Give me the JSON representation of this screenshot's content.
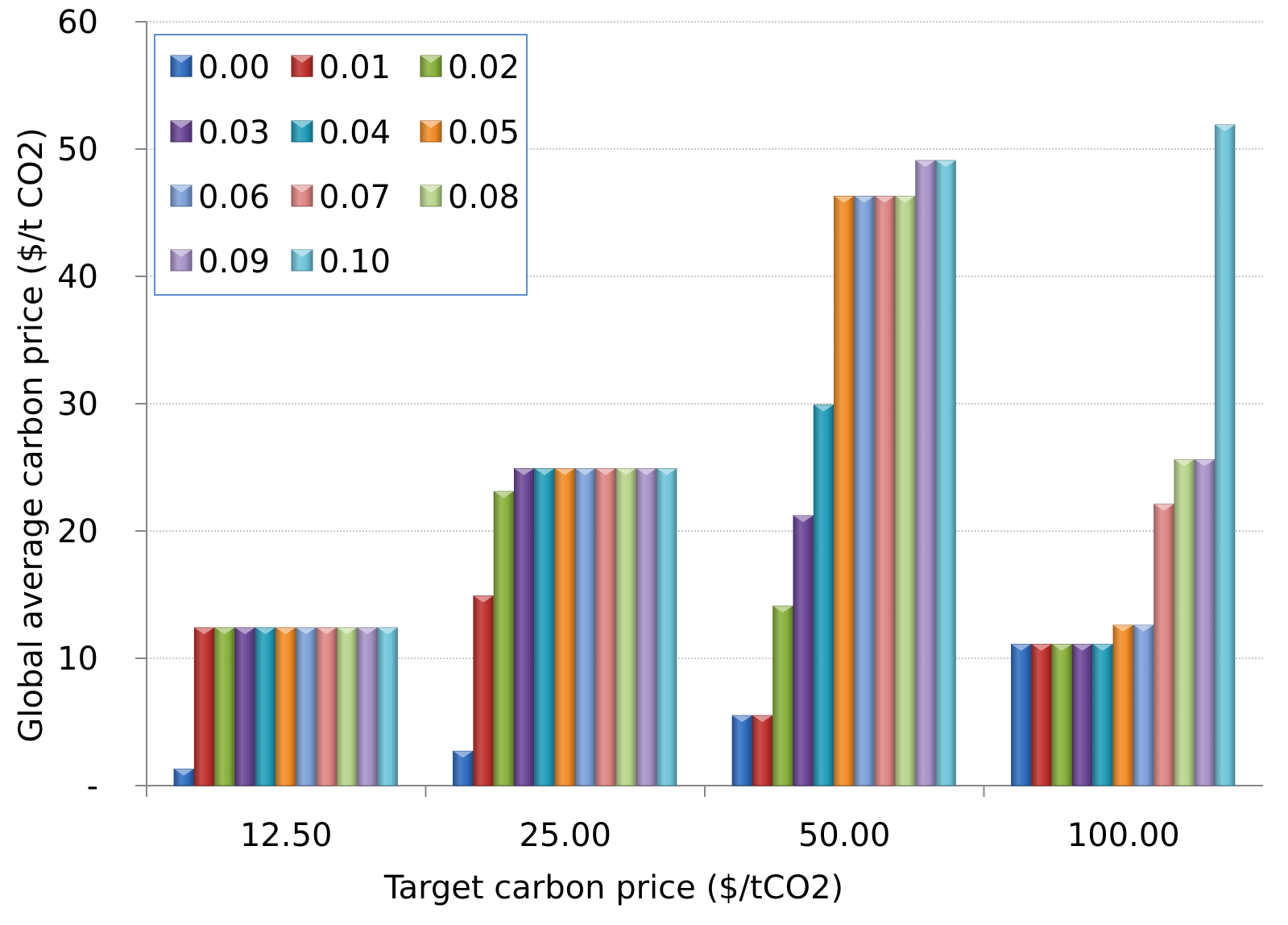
{
  "chart_data": {
    "type": "bar",
    "title": "",
    "xlabel": "Target carbon price ($/tCO2)",
    "ylabel": "Global average carbon price ($/t CO2)",
    "ylim": [
      0,
      60
    ],
    "yticks": [
      {
        "value": 0,
        "label": "-"
      },
      {
        "value": 10,
        "label": "10"
      },
      {
        "value": 20,
        "label": "20"
      },
      {
        "value": 30,
        "label": "30"
      },
      {
        "value": 40,
        "label": "40"
      },
      {
        "value": 50,
        "label": "50"
      },
      {
        "value": 60,
        "label": "60"
      }
    ],
    "grid": true,
    "legend_position": "top-left",
    "categories": [
      "12.50",
      "25.00",
      "50.00",
      "100.00"
    ],
    "series": [
      {
        "name": "0.00",
        "color": "#2e6cc0",
        "values": [
          1.3,
          2.7,
          5.5,
          11.1
        ]
      },
      {
        "name": "0.01",
        "color": "#c0302c",
        "values": [
          12.4,
          14.9,
          5.5,
          11.1
        ]
      },
      {
        "name": "0.02",
        "color": "#88b03a",
        "values": [
          12.4,
          23.1,
          14.1,
          11.1
        ]
      },
      {
        "name": "0.03",
        "color": "#6a4596",
        "values": [
          12.4,
          24.9,
          21.2,
          11.1
        ]
      },
      {
        "name": "0.04",
        "color": "#1f9cb8",
        "values": [
          12.4,
          24.9,
          29.9,
          11.1
        ]
      },
      {
        "name": "0.05",
        "color": "#f18a24",
        "values": [
          12.4,
          24.9,
          46.3,
          12.6
        ]
      },
      {
        "name": "0.06",
        "color": "#7b9fd8",
        "values": [
          12.4,
          24.9,
          46.3,
          12.6
        ]
      },
      {
        "name": "0.07",
        "color": "#dc8583",
        "values": [
          12.4,
          24.9,
          46.3,
          22.1
        ]
      },
      {
        "name": "0.08",
        "color": "#b8d48a",
        "values": [
          12.4,
          24.9,
          46.3,
          25.6
        ]
      },
      {
        "name": "0.09",
        "color": "#a692c6",
        "values": [
          12.4,
          24.9,
          49.1,
          25.6
        ]
      },
      {
        "name": "0.10",
        "color": "#6cc3d8",
        "values": [
          12.4,
          24.9,
          49.1,
          51.9
        ]
      }
    ]
  }
}
